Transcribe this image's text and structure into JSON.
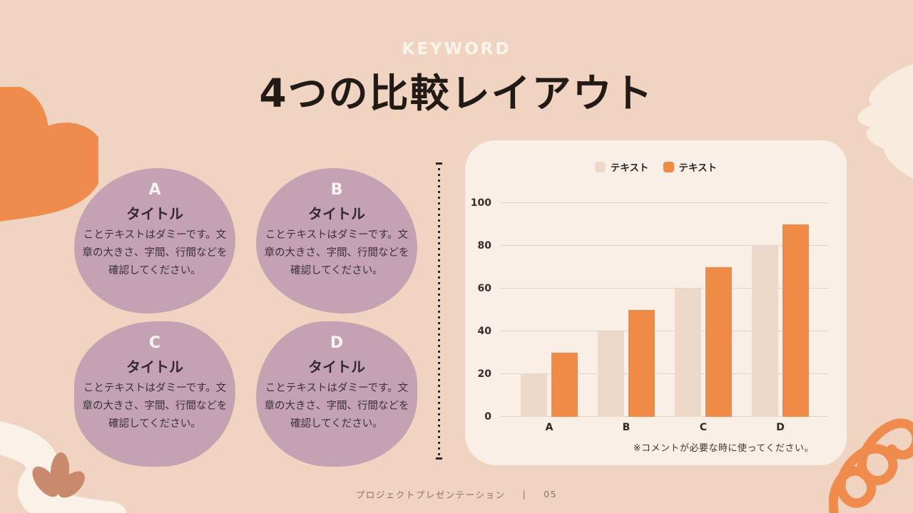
{
  "header": {
    "eyebrow": "KEYWORD",
    "title": "4つの比較レイアウト"
  },
  "cards": [
    {
      "letter": "A",
      "title": "タイトル",
      "body": "ことテキストはダミーです。文章の大きさ、字間、行間などを確認してください。"
    },
    {
      "letter": "B",
      "title": "タイトル",
      "body": "ことテキストはダミーです。文章の大きさ、字間、行間などを確認してください。"
    },
    {
      "letter": "C",
      "title": "タイトル",
      "body": "ことテキストはダミーです。文章の大きさ、字間、行間などを確認してください。"
    },
    {
      "letter": "D",
      "title": "タイトル",
      "body": "ことテキストはダミーです。文章の大きさ、字間、行間などを確認してください。"
    }
  ],
  "chart_card": {
    "note": "※コメントが必要な時に使ってください。"
  },
  "chart_data": {
    "type": "bar",
    "title": "",
    "categories": [
      "A",
      "B",
      "C",
      "D"
    ],
    "series": [
      {
        "name": "テキスト",
        "color": "#ecd9c9",
        "values": [
          20,
          40,
          60,
          80
        ]
      },
      {
        "name": "テキスト",
        "color": "#ef8b47",
        "values": [
          30,
          50,
          70,
          90
        ]
      }
    ],
    "xlabel": "",
    "ylabel": "",
    "ylim": [
      0,
      100
    ],
    "yticks": [
      0,
      20,
      40,
      60,
      80,
      100
    ],
    "grid": true,
    "legend_position": "top-center"
  },
  "footer": {
    "text": "プロジェクトプレゼンテーション",
    "separator": "|",
    "page": "05"
  },
  "colors": {
    "background": "#f0d4c1",
    "chart_card": "#f9efe7",
    "blob": "#c4a2b3",
    "accent_orange": "#ef8b47",
    "beige": "#ecd9c9",
    "cream": "#f8ecdf",
    "terracotta": "#c9896c",
    "text_dark": "#211a15",
    "footer_text": "#8d7265"
  }
}
